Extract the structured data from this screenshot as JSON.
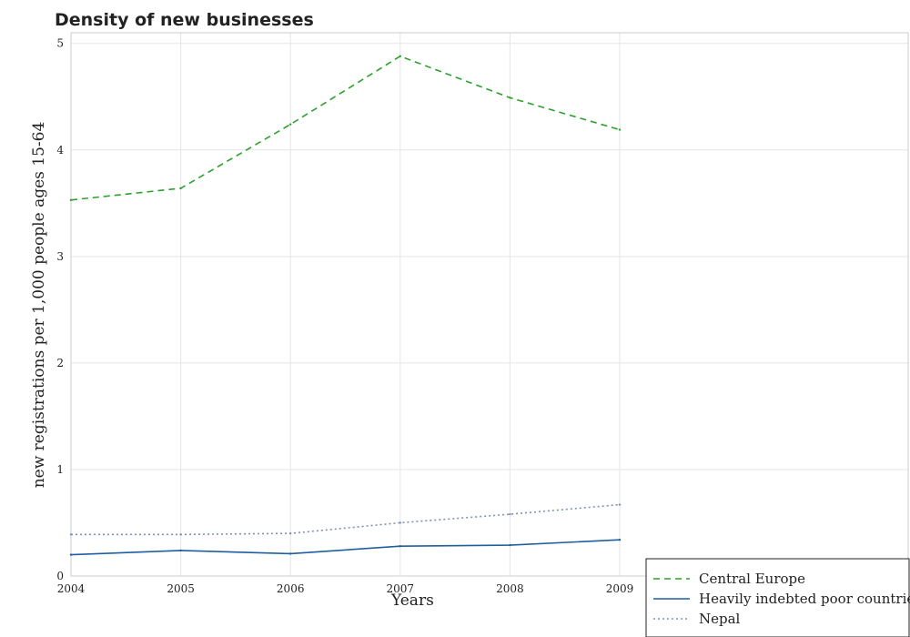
{
  "chart_data": {
    "type": "line",
    "title": "Density of new businesses",
    "xlabel": "Years",
    "ylabel": "new registrations per 1,000 people ages 15-64",
    "x": [
      "2004",
      "2005",
      "2006",
      "2007",
      "2008",
      "2009"
    ],
    "ylim": [
      0,
      5.1
    ],
    "yticks": [
      0,
      1,
      2,
      3,
      4,
      5
    ],
    "grid": true,
    "legend_position": "bottom-right",
    "series": [
      {
        "name": "Central Europe",
        "color": "#2ca02c",
        "dash": "dashed",
        "values": [
          3.53,
          3.64,
          4.24,
          4.88,
          4.49,
          4.19
        ]
      },
      {
        "name": "Heavily indebted poor countries",
        "color": "#1f5fa0",
        "dash": "solid",
        "values": [
          0.2,
          0.24,
          0.21,
          0.28,
          0.29,
          0.34
        ]
      },
      {
        "name": "Nepal",
        "color": "#7f93b0",
        "dash": "dotted",
        "values": [
          0.39,
          0.39,
          0.4,
          0.5,
          0.58,
          0.67
        ]
      }
    ]
  }
}
